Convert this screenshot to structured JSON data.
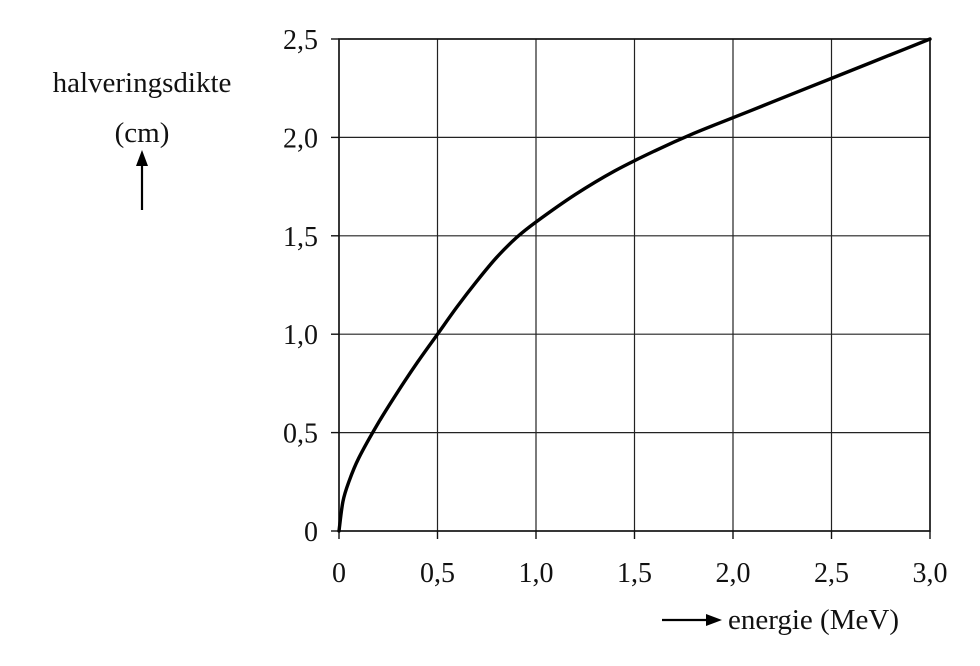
{
  "chart_data": {
    "type": "line",
    "ylabel": "halveringsdikte",
    "ylabel_unit": "(cm)",
    "xlabel": "energie (MeV)",
    "xlim": [
      0,
      3.0
    ],
    "ylim": [
      0,
      2.5
    ],
    "grid": true,
    "x_ticks": [
      "0",
      "0,5",
      "1,0",
      "1,5",
      "2,0",
      "2,5",
      "3,0"
    ],
    "y_ticks": [
      "0",
      "0,5",
      "1,0",
      "1,5",
      "2,0",
      "2,5"
    ],
    "series": [
      {
        "x": [
          0,
          0.02,
          0.05,
          0.1,
          0.2,
          0.3,
          0.4,
          0.5,
          0.6,
          0.7,
          0.8,
          0.9,
          1.0,
          1.2,
          1.4,
          1.6,
          1.8,
          2.0,
          2.2,
          2.4,
          2.6,
          2.8,
          3.0
        ],
        "y": [
          0,
          0.15,
          0.25,
          0.37,
          0.55,
          0.71,
          0.86,
          1.0,
          1.14,
          1.27,
          1.39,
          1.49,
          1.57,
          1.71,
          1.83,
          1.93,
          2.02,
          2.1,
          2.18,
          2.26,
          2.34,
          2.42,
          2.5
        ]
      }
    ]
  }
}
